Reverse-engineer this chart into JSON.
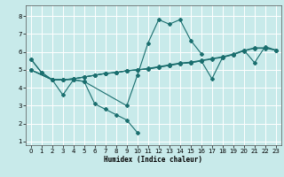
{
  "xlabel": "Humidex (Indice chaleur)",
  "xlim": [
    -0.5,
    23.5
  ],
  "ylim": [
    0.8,
    8.6
  ],
  "yticks": [
    1,
    2,
    3,
    4,
    5,
    6,
    7,
    8
  ],
  "xticks": [
    0,
    1,
    2,
    3,
    4,
    5,
    6,
    7,
    8,
    9,
    10,
    11,
    12,
    13,
    14,
    15,
    16,
    17,
    18,
    19,
    20,
    21,
    22,
    23
  ],
  "bg_color": "#c8eaea",
  "line_color": "#1a6e6e",
  "grid_color": "#ffffff",
  "line1_x": [
    0,
    1,
    2,
    3,
    4,
    5,
    6,
    7,
    8,
    9,
    10
  ],
  "line1_y": [
    5.6,
    4.85,
    4.45,
    3.6,
    4.45,
    4.35,
    3.1,
    2.8,
    2.5,
    2.2,
    1.5
  ],
  "line2_x": [
    0,
    1,
    2,
    4,
    5,
    9,
    10,
    11,
    12,
    13,
    14,
    15,
    16
  ],
  "line2_y": [
    5.6,
    4.85,
    4.45,
    4.45,
    4.35,
    3.0,
    4.7,
    6.5,
    7.8,
    7.55,
    7.8,
    6.65,
    5.9
  ],
  "line3_x": [
    0,
    2,
    3,
    4,
    5,
    6,
    7,
    8,
    9,
    10,
    11,
    12,
    13,
    14,
    15,
    16,
    17,
    18,
    19,
    20,
    21,
    22,
    23
  ],
  "line3_y": [
    5.0,
    4.45,
    4.45,
    4.5,
    4.6,
    4.7,
    4.8,
    4.85,
    4.95,
    5.0,
    5.05,
    5.15,
    5.25,
    5.35,
    5.4,
    5.5,
    5.6,
    5.7,
    5.85,
    6.05,
    6.2,
    6.2,
    6.1
  ],
  "line4_x": [
    0,
    2,
    3,
    4,
    5,
    6,
    7,
    8,
    9,
    10,
    11,
    12,
    13,
    14,
    15,
    16,
    17,
    18,
    19,
    20,
    21,
    22,
    23
  ],
  "line4_y": [
    5.0,
    4.45,
    4.45,
    4.5,
    4.6,
    4.7,
    4.8,
    4.85,
    4.95,
    5.0,
    5.05,
    5.15,
    5.25,
    5.35,
    5.4,
    5.5,
    4.5,
    5.7,
    5.85,
    6.1,
    5.4,
    6.3,
    6.1
  ],
  "line5_x": [
    0,
    2,
    3,
    4,
    5,
    6,
    7,
    8,
    9,
    10,
    11,
    12,
    13,
    14,
    15,
    16,
    17,
    18,
    19,
    20,
    21,
    22,
    23
  ],
  "line5_y": [
    5.0,
    4.45,
    4.45,
    4.5,
    4.6,
    4.7,
    4.8,
    4.85,
    4.95,
    5.0,
    5.08,
    5.18,
    5.28,
    5.38,
    5.43,
    5.53,
    5.63,
    5.73,
    5.88,
    6.08,
    6.23,
    6.23,
    6.1
  ]
}
